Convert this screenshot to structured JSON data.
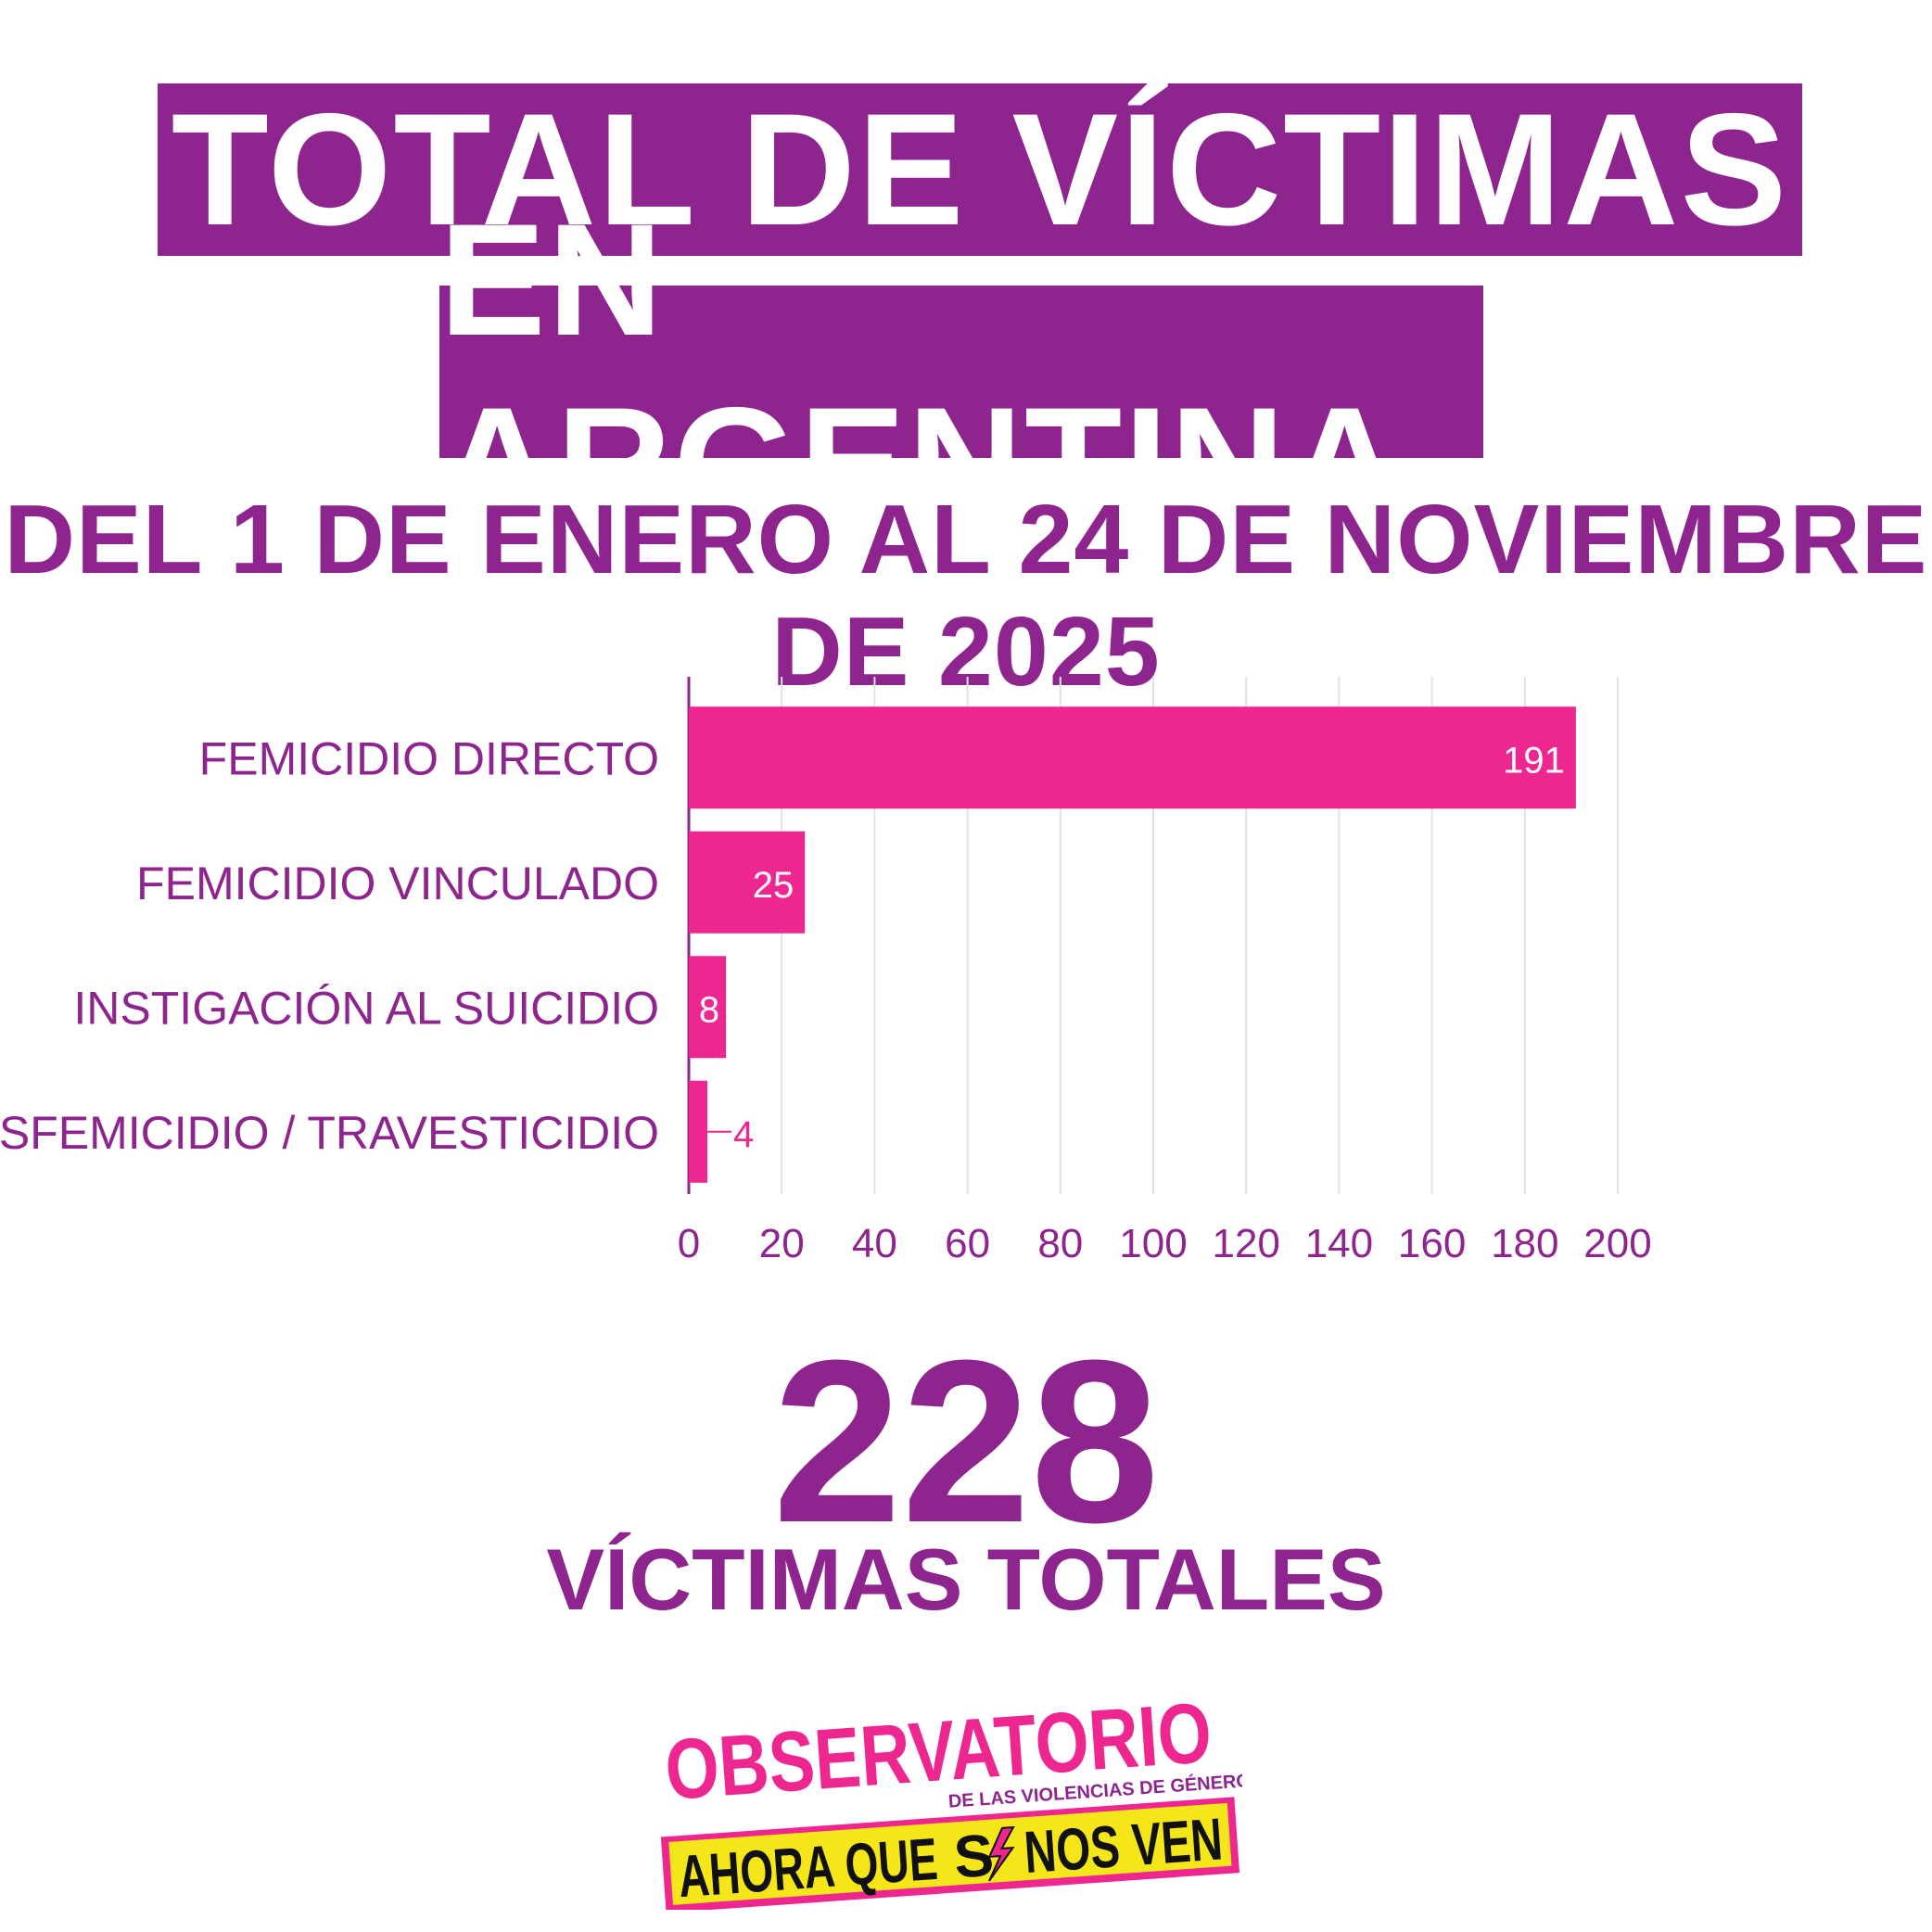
{
  "header": {
    "title_line1": "TOTAL DE VÍCTIMAS",
    "title_line2": "EN ARGENTINA",
    "subtitle": "DEL 1 DE ENERO AL 24 DE NOVIEMBRE DE 2025"
  },
  "colors": {
    "purple": "#8e258f",
    "pink": "#ee2690",
    "yellow": "#f5e61a",
    "grid": "#e2e2e2"
  },
  "chart_data": {
    "type": "bar",
    "orientation": "horizontal",
    "categories": [
      "FEMICIDIO DIRECTO",
      "FEMICIDIO VINCULADO",
      "INSTIGACIÓN AL SUICIDIO",
      "TRANSFEMICIDIO / TRAVESTICIDIO"
    ],
    "values": [
      191,
      25,
      8,
      4
    ],
    "xlim": [
      0,
      200
    ],
    "xticks": [
      0,
      20,
      40,
      60,
      80,
      100,
      120,
      140,
      160,
      180,
      200
    ],
    "grid": true,
    "legend": "none"
  },
  "total": {
    "number": "228",
    "label": "VÍCTIMAS TOTALES"
  },
  "logo": {
    "line1": "OBSERVATORIO",
    "line2": "DE LAS VIOLENCIAS DE GÉNERO",
    "line3_a": "AHORA QUE",
    "line3_b": "S",
    "line3_c": "NOS VEN"
  }
}
